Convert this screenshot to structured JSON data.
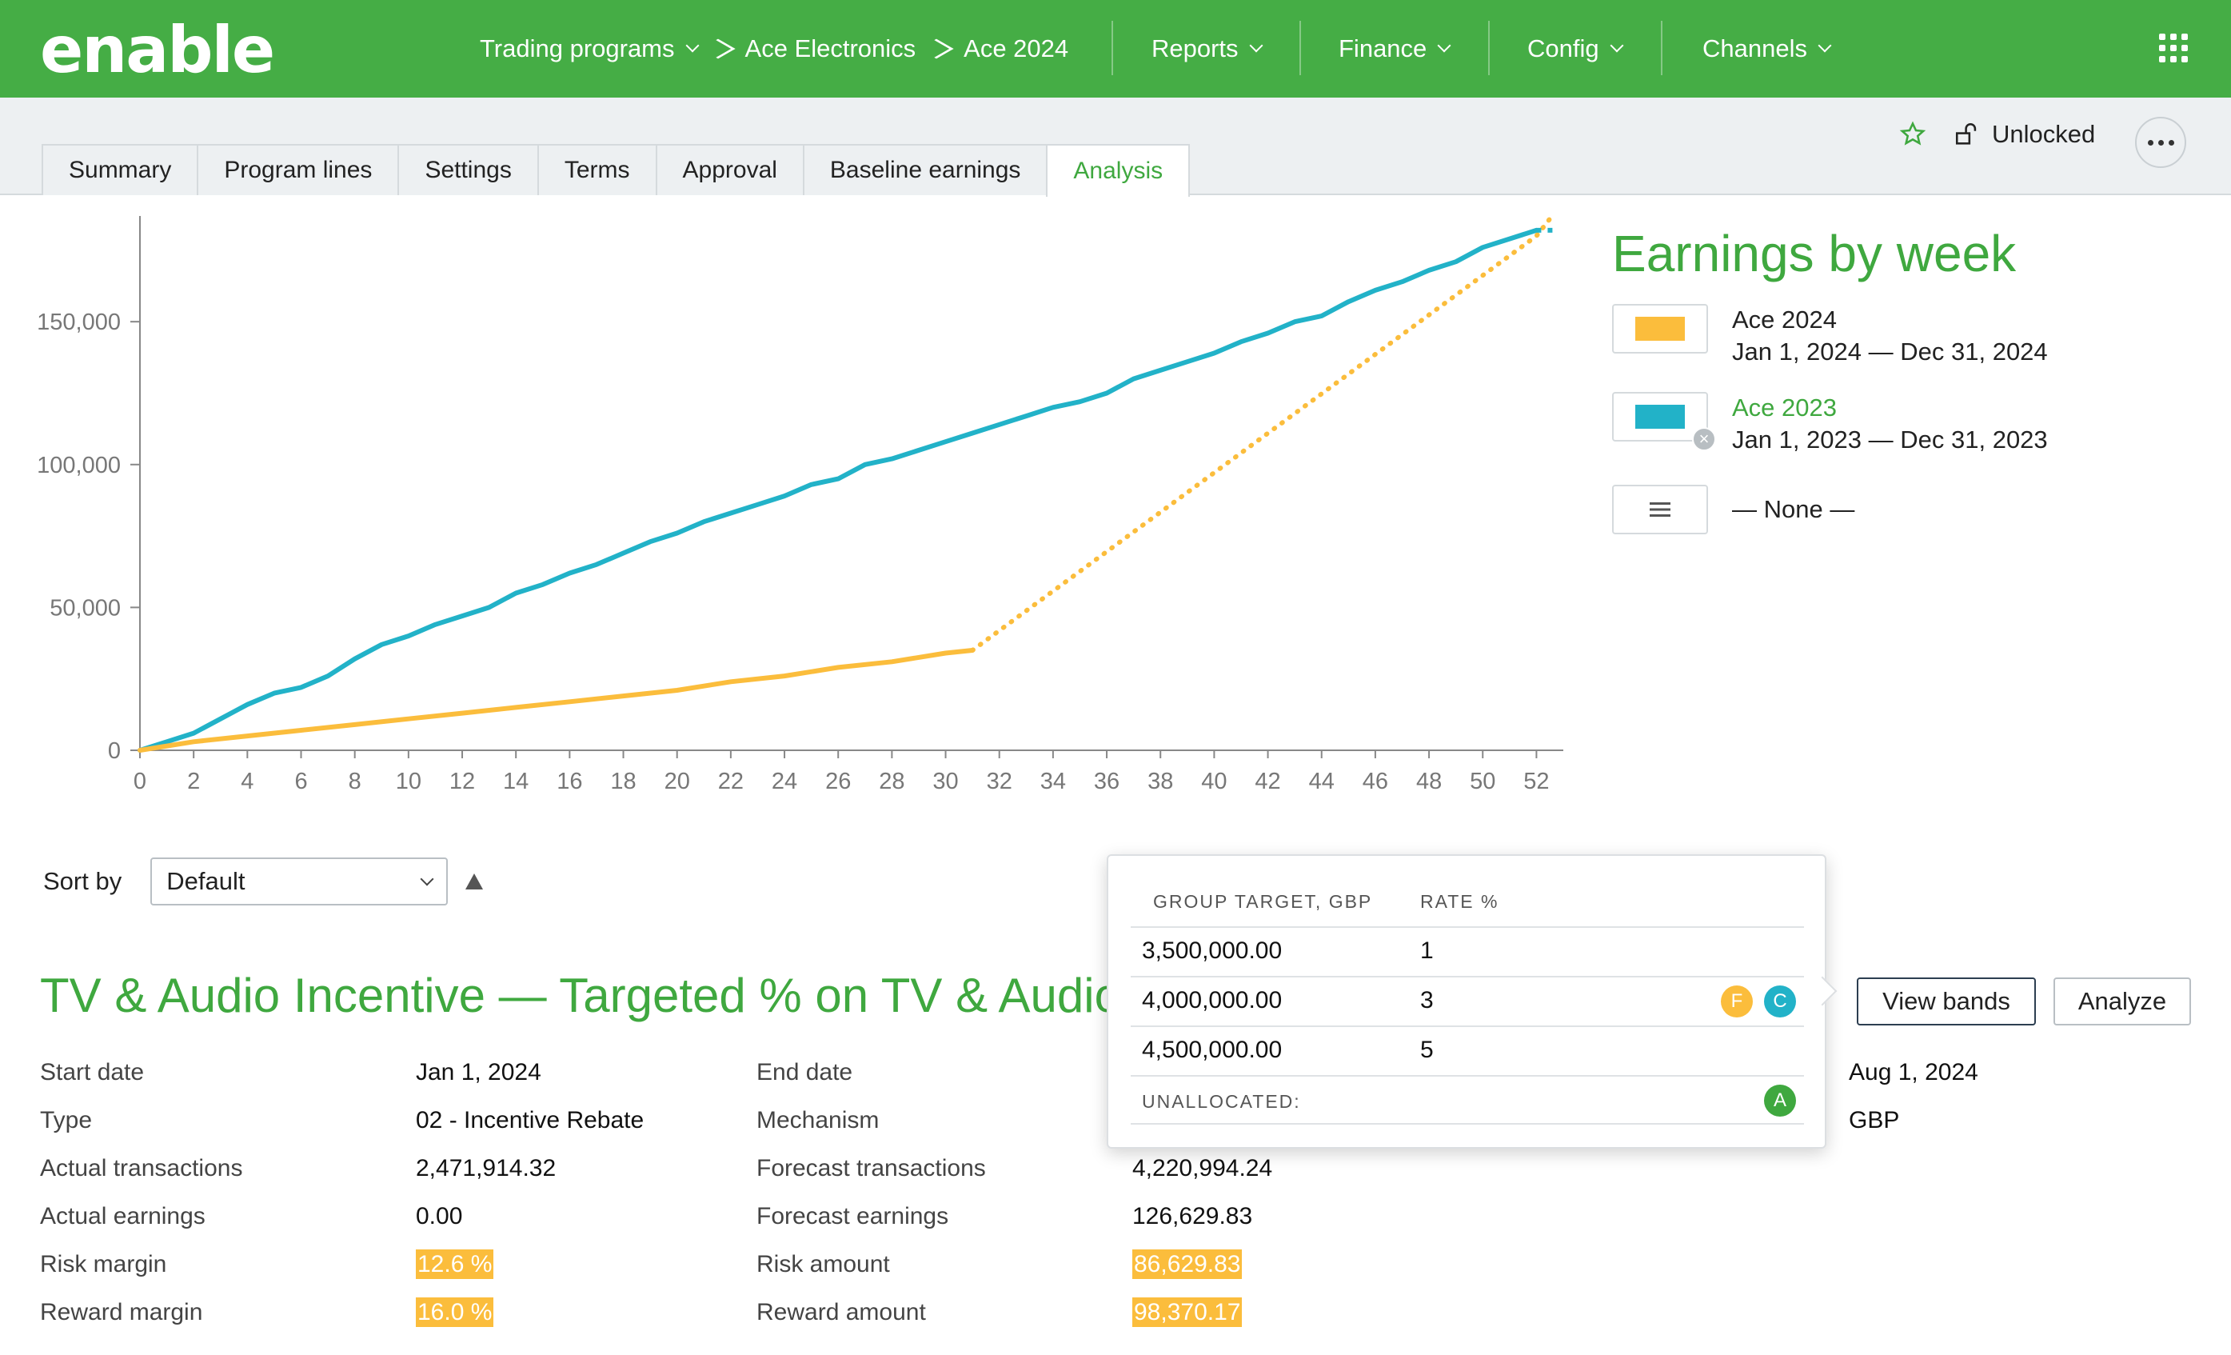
{
  "app": {
    "logo": "enable"
  },
  "nav": {
    "breadcrumb": [
      "Trading programs",
      "Ace Electronics",
      "Ace 2024"
    ],
    "menus": [
      "Reports",
      "Finance",
      "Config",
      "Channels"
    ]
  },
  "tabs": [
    "Summary",
    "Program lines",
    "Settings",
    "Terms",
    "Approval",
    "Baseline earnings",
    "Analysis"
  ],
  "active_tab": "Analysis",
  "tools": {
    "lock_label": "Unlocked"
  },
  "legend": {
    "title": "Earnings by week",
    "items": [
      {
        "name": "Ace 2024",
        "range": "Jan 1, 2024 — Dec 31, 2024",
        "color": "#fbbd3c"
      },
      {
        "name": "Ace 2023",
        "range": "Jan 1, 2023 — Dec 31, 2023",
        "color": "#22b2c8"
      }
    ],
    "none_label": "— None —"
  },
  "chart_data": {
    "type": "line",
    "x_ticks": [
      0,
      2,
      4,
      6,
      8,
      10,
      12,
      14,
      16,
      18,
      20,
      22,
      24,
      26,
      28,
      30,
      32,
      34,
      36,
      38,
      40,
      42,
      44,
      46,
      48,
      50,
      52
    ],
    "y_ticks": [
      0,
      50000,
      100000,
      150000
    ],
    "y_tick_labels": [
      "0",
      "50,000",
      "100,000",
      "150,000"
    ],
    "xlim": [
      0,
      53
    ],
    "ylim": [
      0,
      187000
    ],
    "series": [
      {
        "name": "Ace 2023",
        "color": "#22b2c8",
        "x": [
          0,
          1,
          2,
          3,
          4,
          5,
          6,
          7,
          8,
          9,
          10,
          11,
          12,
          13,
          14,
          15,
          16,
          17,
          18,
          19,
          20,
          21,
          22,
          23,
          24,
          25,
          26,
          27,
          28,
          29,
          30,
          31,
          32,
          33,
          34,
          35,
          36,
          37,
          38,
          39,
          40,
          41,
          42,
          43,
          44,
          45,
          46,
          47,
          48,
          49,
          50,
          51,
          52
        ],
        "y": [
          0,
          3000,
          6000,
          11000,
          16000,
          20000,
          22000,
          26000,
          32000,
          37000,
          40000,
          44000,
          47000,
          50000,
          55000,
          58000,
          62000,
          65000,
          69000,
          73000,
          76000,
          80000,
          83000,
          86000,
          89000,
          93000,
          95000,
          100000,
          102000,
          105000,
          108000,
          111000,
          114000,
          117000,
          120000,
          122000,
          125000,
          130000,
          133000,
          136000,
          139000,
          143000,
          146000,
          150000,
          152000,
          157000,
          161000,
          164000,
          168000,
          171000,
          176000,
          179000,
          182000
        ]
      },
      {
        "name": "Ace 2024",
        "color": "#fbbd3c",
        "x": [
          0,
          2,
          4,
          6,
          8,
          10,
          12,
          14,
          16,
          18,
          20,
          22,
          24,
          26,
          28,
          30,
          31
        ],
        "y": [
          0,
          3000,
          5000,
          7000,
          9000,
          11000,
          13000,
          15000,
          17000,
          19000,
          21000,
          24000,
          26000,
          29000,
          31000,
          34000,
          35000
        ]
      },
      {
        "name": "Ace 2024 forecast",
        "color": "#fbbd3c",
        "dashed": true,
        "x": [
          31,
          52,
          52.5
        ],
        "y": [
          35000,
          180000,
          186000
        ]
      }
    ]
  },
  "sort": {
    "label": "Sort by",
    "value": "Default"
  },
  "program": {
    "title": "TV & Audio Incentive — Targeted % on TV & Audio",
    "start_label": "Start date",
    "start_value": "Jan 1, 2024",
    "type_label": "Type",
    "type_value": "02 - Incentive Rebate",
    "actual_tx_label": "Actual transactions",
    "actual_tx_value": "2,471,914.32",
    "actual_earn_label": "Actual earnings",
    "actual_earn_value": "0.00",
    "risk_margin_label": "Risk margin",
    "risk_margin_value": "12.6 %",
    "reward_margin_label": "Reward margin",
    "reward_margin_value": "16.0 %",
    "end_label": "End date",
    "mechanism_label": "Mechanism",
    "forecast_tx_label": "Forecast transactions",
    "forecast_tx_value": "4,220,994.24",
    "forecast_earn_label": "Forecast earnings",
    "forecast_earn_value": "126,629.83",
    "risk_amount_label": "Risk amount",
    "risk_amount_value": "86,629.83",
    "reward_amount_label": "Reward amount",
    "reward_amount_value": "98,370.17",
    "right_date": "Aug 1, 2024",
    "right_currency": "GBP"
  },
  "buttons": {
    "view_bands": "View bands",
    "analyze": "Analyze"
  },
  "bands": {
    "col_target": "GROUP TARGET, GBP",
    "col_rate": "RATE %",
    "rows": [
      {
        "target": "3,500,000.00",
        "rate": "1"
      },
      {
        "target": "4,000,000.00",
        "rate": "3"
      },
      {
        "target": "4,500,000.00",
        "rate": "5"
      }
    ],
    "unallocated_label": "UNALLOCATED:",
    "badges": {
      "f": "F",
      "c": "C",
      "a": "A"
    },
    "badge_colors": {
      "f": "#fbbd3c",
      "c": "#22b2c8",
      "a": "#3fa83f"
    }
  }
}
